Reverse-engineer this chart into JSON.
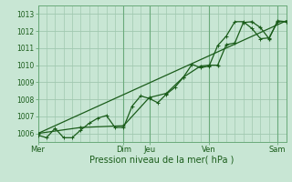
{
  "title": "",
  "xlabel": "Pression niveau de la mer( hPa )",
  "bg_color": "#c8e6d4",
  "grid_color": "#a0c8b0",
  "line_color": "#1a5c1a",
  "vline_color": "#6aaa7a",
  "ylim": [
    1005.5,
    1013.5
  ],
  "xlim": [
    0,
    29
  ],
  "yticks": [
    1006,
    1007,
    1008,
    1009,
    1010,
    1011,
    1012,
    1013
  ],
  "day_labels": [
    "Mer",
    "Dim",
    "Jeu",
    "Ven",
    "Sam"
  ],
  "day_positions": [
    0.0,
    10.0,
    13.0,
    20.0,
    28.0
  ],
  "num_vgrid": 30,
  "series1_x": [
    0,
    1,
    2,
    3,
    4,
    5,
    6,
    7,
    8,
    9,
    10,
    11,
    12,
    13,
    14,
    15,
    16,
    17,
    18,
    19,
    20,
    21,
    22,
    23,
    24,
    25,
    26,
    27,
    28,
    29
  ],
  "series1_y": [
    1005.9,
    1005.75,
    1006.3,
    1005.75,
    1005.75,
    1006.2,
    1006.6,
    1006.9,
    1007.05,
    1006.35,
    1006.35,
    1007.6,
    1008.2,
    1008.05,
    1007.8,
    1008.3,
    1008.7,
    1009.3,
    1010.05,
    1009.85,
    1009.95,
    1011.15,
    1011.7,
    1012.55,
    1012.55,
    1012.15,
    1011.55,
    1011.6,
    1012.55,
    1012.55
  ],
  "series2_x": [
    0,
    5,
    10,
    13,
    15,
    17,
    19,
    20,
    21,
    22,
    23,
    24,
    25,
    26,
    27,
    28,
    29
  ],
  "series2_y": [
    1006.0,
    1006.35,
    1006.45,
    1008.1,
    1008.35,
    1009.3,
    1009.95,
    1010.0,
    1010.0,
    1011.2,
    1011.3,
    1012.5,
    1012.55,
    1012.2,
    1011.55,
    1012.6,
    1012.55
  ],
  "trend_x": [
    0,
    29
  ],
  "trend_y": [
    1006.0,
    1012.6
  ],
  "vline_positions": [
    0,
    10,
    13,
    20,
    28
  ],
  "ylabel_fontsize": 5.5,
  "xlabel_fontsize": 7,
  "xtick_fontsize": 6,
  "linewidth": 0.9,
  "marker_size": 3
}
